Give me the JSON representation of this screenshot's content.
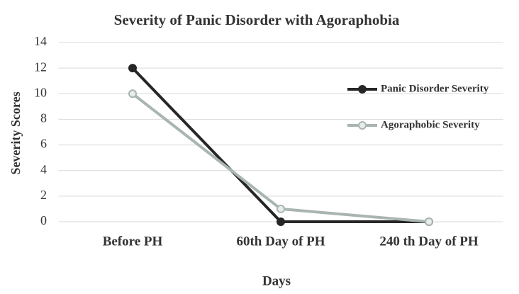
{
  "chart_data": {
    "type": "line",
    "title": "Severity of Panic Disorder with Agoraphobia",
    "x_label": "Days",
    "y_label": "Severity Scores",
    "categories": [
      "Before PH",
      "60th  Day of PH",
      "240 th Day of PH"
    ],
    "series": [
      {
        "name": "Panic Disorder Severity",
        "color": "#262626",
        "values": [
          12,
          0,
          0
        ]
      },
      {
        "name": "Agoraphobic Severity",
        "color": "#a9b5af",
        "values": [
          10,
          1,
          0
        ]
      }
    ],
    "ylim": [
      0,
      14
    ],
    "yticks": [
      0,
      2,
      4,
      6,
      8,
      10,
      12,
      14
    ],
    "grid": true,
    "legend": "right"
  }
}
